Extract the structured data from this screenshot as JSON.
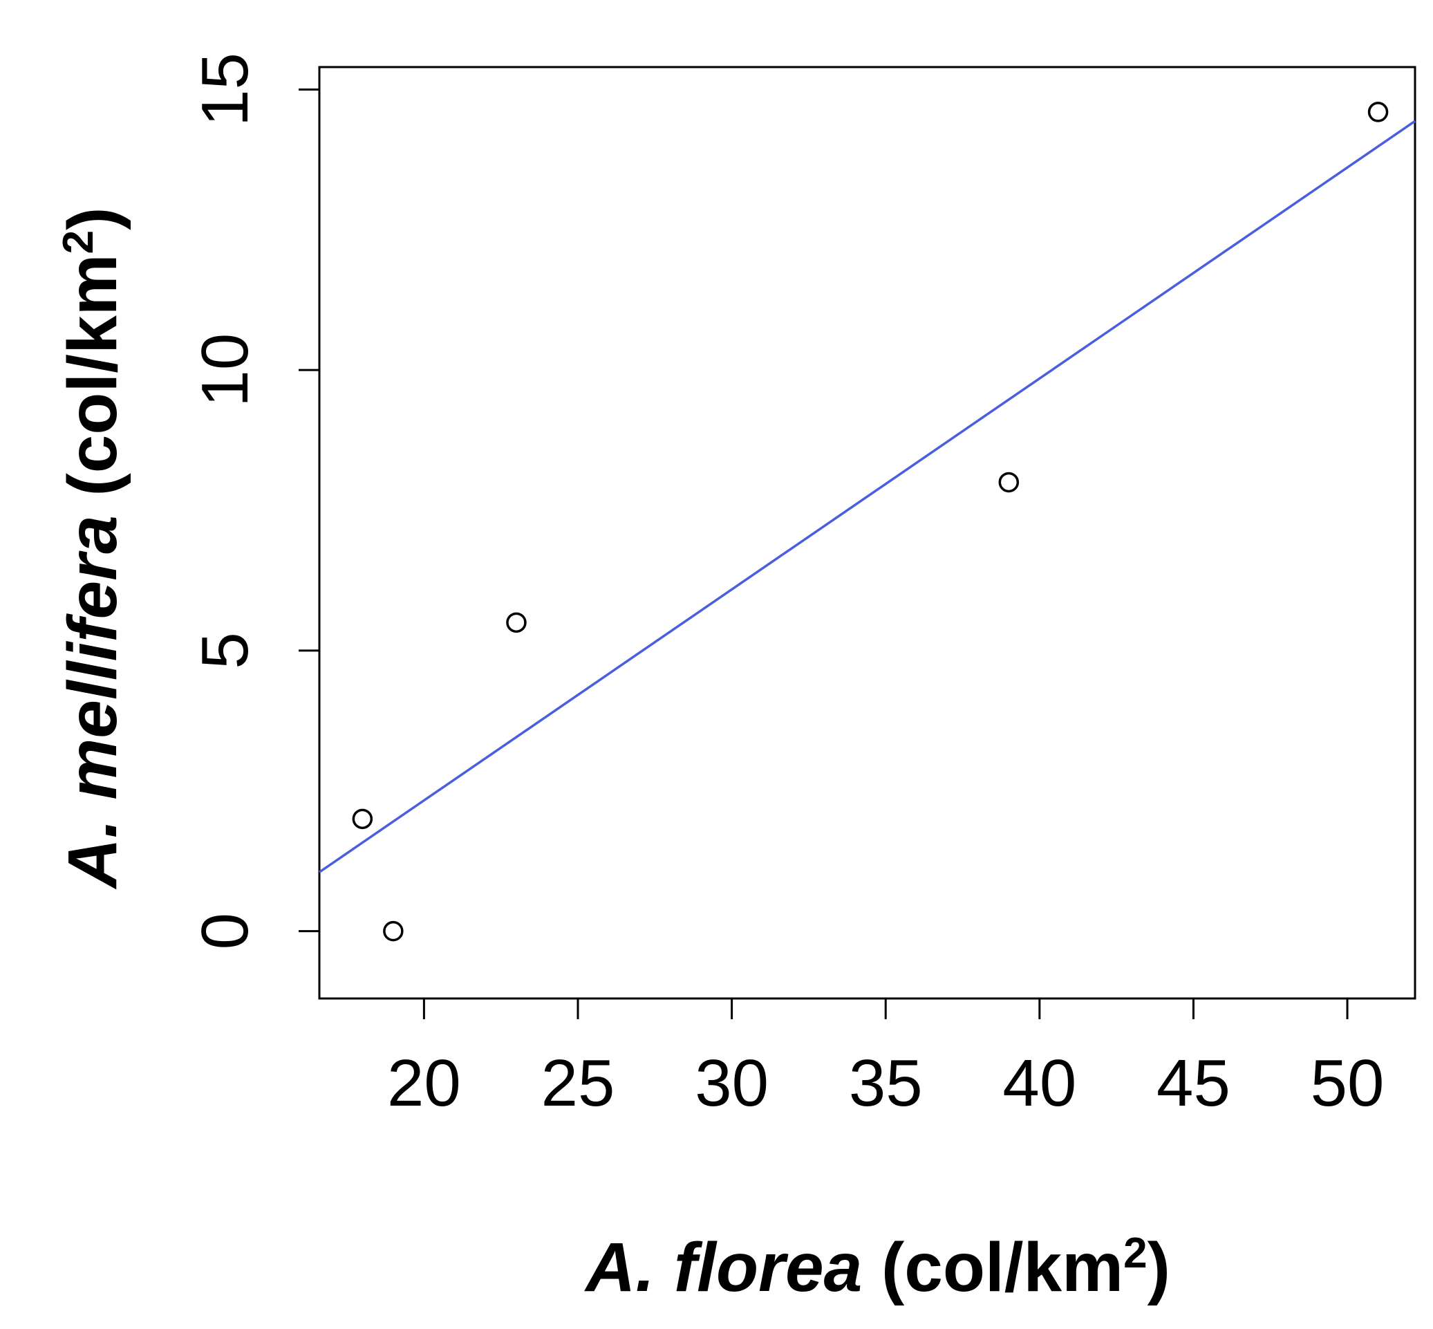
{
  "chart_data": {
    "type": "scatter",
    "title": "",
    "xlabel": {
      "italic": "A. florea",
      "rest": " (col/km",
      "sup": "2",
      "close": ")"
    },
    "ylabel": {
      "italic": "A. mellifera",
      "rest": " (col/km",
      "sup": "2",
      "close": ")"
    },
    "xlim": [
      16.6,
      52.2
    ],
    "ylim": [
      -1.2,
      15.4
    ],
    "xticks": [
      20,
      25,
      30,
      35,
      40,
      45,
      50
    ],
    "yticks": [
      0,
      5,
      10,
      15
    ],
    "xtick_labels": [
      "20",
      "25",
      "30",
      "35",
      "40",
      "45",
      "50"
    ],
    "ytick_labels": [
      "0",
      "5",
      "10",
      "15"
    ],
    "grid": false,
    "points": [
      {
        "x": 18,
        "y": 2
      },
      {
        "x": 19,
        "y": 0
      },
      {
        "x": 23,
        "y": 5.5
      },
      {
        "x": 39,
        "y": 8
      },
      {
        "x": 51,
        "y": 14.6
      }
    ],
    "fit_line": {
      "slope": 0.376,
      "intercept": -5.19
    },
    "colors": {
      "points": "#000000",
      "fit_line": "#4a5fe0",
      "frame": "#000000"
    }
  }
}
